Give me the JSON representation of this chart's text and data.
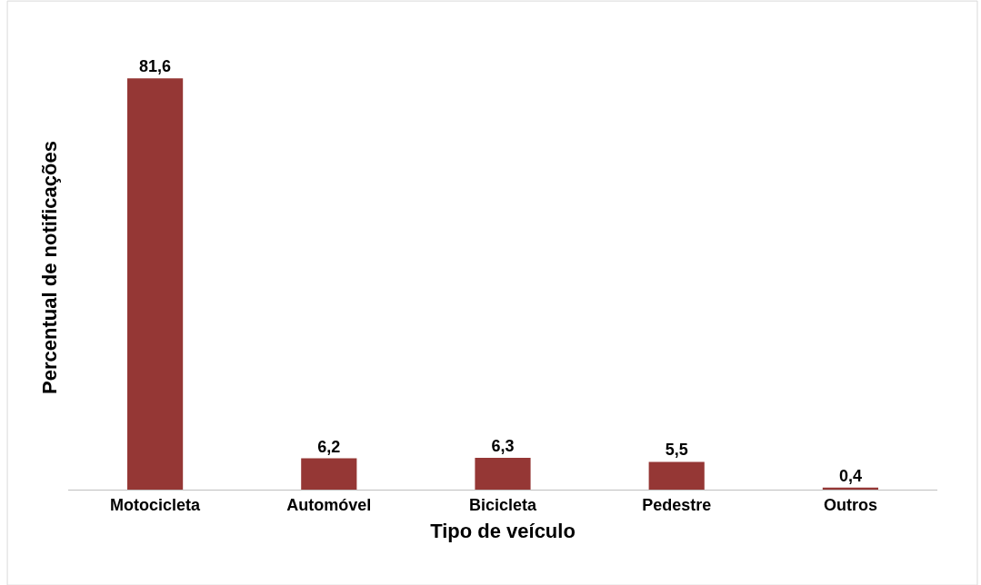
{
  "chart_data": {
    "type": "bar",
    "xlabel": "Tipo de veículo",
    "ylabel": "Percentual de notificações",
    "categories": [
      "Motocicleta",
      "Automóvel",
      "Bicicleta",
      "Pedestre",
      "Outros"
    ],
    "values": [
      81.6,
      6.2,
      6.3,
      5.5,
      0.4
    ],
    "value_labels": [
      "81,6",
      "6,2",
      "6,3",
      "5,5",
      "0,4"
    ],
    "color": "#953735"
  }
}
